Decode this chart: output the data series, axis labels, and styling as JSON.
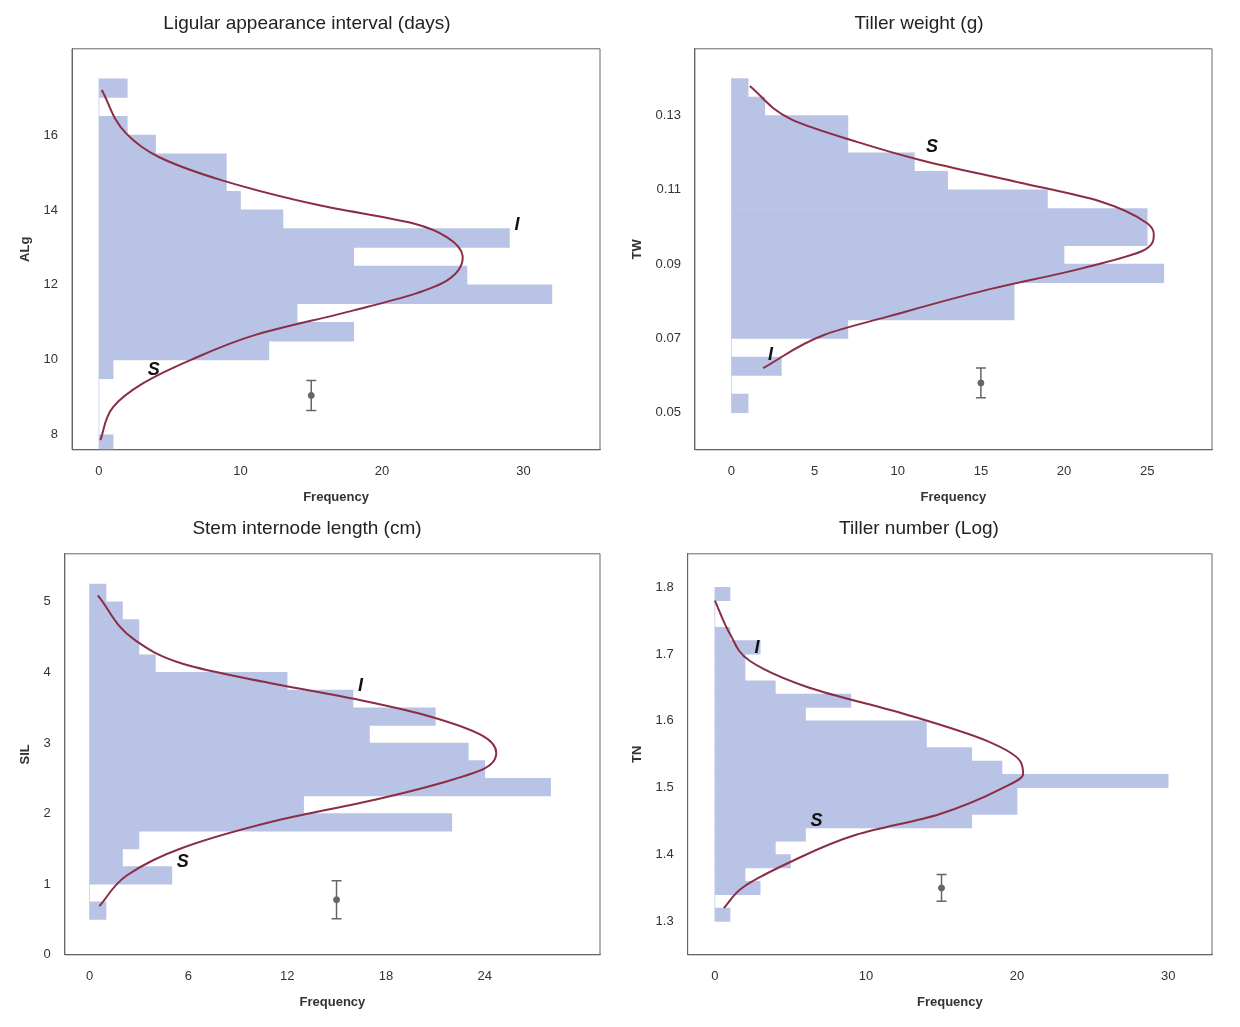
{
  "chart_data": [
    {
      "type": "histogram",
      "orientation": "horizontal",
      "title": "Ligular appearance interval (days)",
      "xlabel": "Frequency",
      "ylabel": "ALg",
      "xlim": [
        -1.9,
        35.4
      ],
      "ylim": [
        7.6,
        18.3
      ],
      "xticks": [
        0,
        10,
        20,
        30
      ],
      "yticks": [
        8,
        10,
        12,
        14,
        16
      ],
      "series": [
        {
          "type": "histogram",
          "color": "#b9c3e6",
          "bins": [
            7.5,
            8,
            8.5,
            9,
            9.5,
            10,
            10.5,
            11,
            11.5,
            12,
            12.5,
            13,
            13.5,
            14,
            14.5,
            15,
            15.5,
            16,
            16.5,
            17,
            17.5
          ],
          "values": [
            1,
            0,
            0,
            0,
            1,
            12,
            18,
            14,
            32,
            26,
            18,
            29,
            13,
            10,
            9,
            9,
            4,
            2,
            0,
            2
          ]
        },
        {
          "type": "line",
          "color": "#8b2e45",
          "marker": "none",
          "values": [
            0.2,
            1.9,
            4.2,
            8.7,
            15.5,
            22.3,
            24.6,
            25.7,
            24.6,
            22.3,
            17.8,
            11.0,
            6.5,
            3.1,
            1.0,
            0.1
          ],
          "x": [
            17.2,
            16.05,
            15.42,
            14.79,
            14.13,
            13.63,
            13.27,
            12.73,
            12.12,
            11.76,
            11.3,
            10.66,
            10.0,
            9.37,
            8.74,
            7.86
          ]
        },
        {
          "type": "scatter",
          "color": "#666666",
          "marker": "circle",
          "x": [
            9.05
          ],
          "values": [
            15
          ],
          "xerrors": [
            0.4
          ]
        }
      ],
      "annotations": [
        {
          "text": "S",
          "x": 3.1,
          "y": 9.37
        },
        {
          "text": "I",
          "x": 29,
          "y": 13.25
        }
      ]
    },
    {
      "type": "histogram",
      "orientation": "horizontal",
      "title": "Tiller weight (g)",
      "xlabel": "Frequency",
      "ylabel": "TW",
      "xlim": [
        -2.2,
        28.9
      ],
      "ylim": [
        0.04,
        0.148
      ],
      "xticks": [
        0,
        5,
        10,
        15,
        20,
        25
      ],
      "yticks": [
        0.05,
        0.07,
        0.09,
        0.11,
        0.13
      ],
      "series": [
        {
          "type": "histogram",
          "color": "#b9c3e6",
          "bins": [
            0.05,
            0.055,
            0.06,
            0.065,
            0.07,
            0.075,
            0.08,
            0.085,
            0.09,
            0.095,
            0.1,
            0.105,
            0.11,
            0.115,
            0.12,
            0.125,
            0.13,
            0.135,
            0.14
          ],
          "values": [
            1,
            0,
            3,
            0,
            7,
            17,
            17,
            26,
            20,
            25,
            25,
            19,
            13,
            11,
            7,
            7,
            2,
            1
          ]
        },
        {
          "type": "line",
          "color": "#8b2e45",
          "marker": "none",
          "values": [
            1.1,
            3.6,
            7.5,
            11.4,
            17.3,
            22.1,
            25.0,
            25.4,
            24.9,
            21.2,
            15.3,
            9.5,
            5.6,
            1.9
          ],
          "x": [
            0.138,
            0.129,
            0.123,
            0.118,
            0.112,
            0.107,
            0.101,
            0.098,
            0.094,
            0.089,
            0.083,
            0.076,
            0.071,
            0.062
          ]
        },
        {
          "type": "scatter",
          "color": "#666666",
          "marker": "circle",
          "x": [
            0.058
          ],
          "values": [
            15
          ],
          "xerrors": [
            0.004
          ]
        }
      ],
      "annotations": [
        {
          "text": "S",
          "x": 11.4,
          "y": 0.118
        },
        {
          "text": "I",
          "x": 1.9,
          "y": 0.062
        }
      ]
    },
    {
      "type": "histogram",
      "orientation": "horizontal",
      "title": "Stem internode length (cm)",
      "xlabel": "Frequency",
      "ylabel": "SIL",
      "xlim": [
        -1.5,
        31.0
      ],
      "ylim": [
        0,
        5.68
      ],
      "xticks": [
        0,
        6,
        12,
        18,
        24
      ],
      "yticks": [
        0,
        1,
        2,
        3,
        4,
        5
      ],
      "series": [
        {
          "type": "histogram",
          "color": "#b9c3e6",
          "bins": [
            0.5,
            0.75,
            1,
            1.25,
            1.5,
            1.75,
            2,
            2.25,
            2.5,
            2.75,
            3,
            3.25,
            3.5,
            3.75,
            4,
            4.25,
            4.5,
            4.75,
            5,
            5.25
          ],
          "values": [
            1,
            0,
            5,
            2,
            3,
            22,
            13,
            28,
            24,
            23,
            17,
            21,
            16,
            12,
            4,
            3,
            3,
            2,
            1
          ]
        },
        {
          "type": "line",
          "color": "#8b2e45",
          "marker": "none",
          "values": [
            0.5,
            2.8,
            5.7,
            10.5,
            16.4,
            20.3,
            23.8,
            24.7,
            24.0,
            21.3,
            17.4,
            11.5,
            5.7,
            2.3,
            0.6
          ],
          "x": [
            5.09,
            4.45,
            4.12,
            3.87,
            3.61,
            3.4,
            3.11,
            2.86,
            2.64,
            2.43,
            2.2,
            1.91,
            1.52,
            1.13,
            0.69
          ]
        },
        {
          "type": "scatter",
          "color": "#666666",
          "marker": "circle",
          "x": [
            0.78
          ],
          "values": [
            15
          ],
          "xerrors": [
            0.27
          ]
        }
      ],
      "annotations": [
        {
          "text": "S",
          "x": 5,
          "y": 1.125
        },
        {
          "text": "I",
          "x": 16,
          "y": 3.625
        }
      ]
    },
    {
      "type": "histogram",
      "orientation": "horizontal",
      "title": "Tiller number (Log)",
      "xlabel": "Frequency",
      "ylabel": "TN",
      "xlim": [
        -1.8,
        32.9
      ],
      "ylim": [
        1.25,
        1.85
      ],
      "xticks": [
        0,
        10,
        20,
        30
      ],
      "yticks": [
        1.3,
        1.4,
        1.5,
        1.6,
        1.7,
        1.8
      ],
      "series": [
        {
          "type": "histogram",
          "color": "#b9c3e6",
          "bins": [
            1.3,
            1.32,
            1.34,
            1.36,
            1.38,
            1.4,
            1.42,
            1.44,
            1.46,
            1.48,
            1.5,
            1.52,
            1.54,
            1.56,
            1.58,
            1.6,
            1.62,
            1.64,
            1.66,
            1.68,
            1.7,
            1.72,
            1.74,
            1.76,
            1.78,
            1.8
          ],
          "values": [
            1,
            0,
            3,
            2,
            5,
            4,
            6,
            17,
            20,
            20,
            30,
            19,
            17,
            14,
            14,
            6,
            9,
            4,
            2,
            2,
            3,
            1,
            0,
            0,
            1
          ]
        },
        {
          "type": "line",
          "color": "#8b2e45",
          "marker": "none",
          "values": [
            0,
            1.0,
            2.3,
            6.2,
            12.6,
            18.0,
            20.2,
            20.4,
            19.1,
            14.8,
            9.4,
            5.1,
            1.8,
            0.6
          ],
          "x": [
            1.78,
            1.73,
            1.69,
            1.65,
            1.61,
            1.57,
            1.54,
            1.52,
            1.5,
            1.46,
            1.43,
            1.39,
            1.35,
            1.32
          ]
        },
        {
          "type": "scatter",
          "color": "#666666",
          "marker": "circle",
          "x": [
            1.35
          ],
          "values": [
            15
          ],
          "xerrors": [
            0.02
          ]
        }
      ],
      "annotations": [
        {
          "text": "S",
          "x": 6,
          "y": 1.43
        },
        {
          "text": "I",
          "x": 2.3,
          "y": 1.69
        }
      ]
    }
  ]
}
